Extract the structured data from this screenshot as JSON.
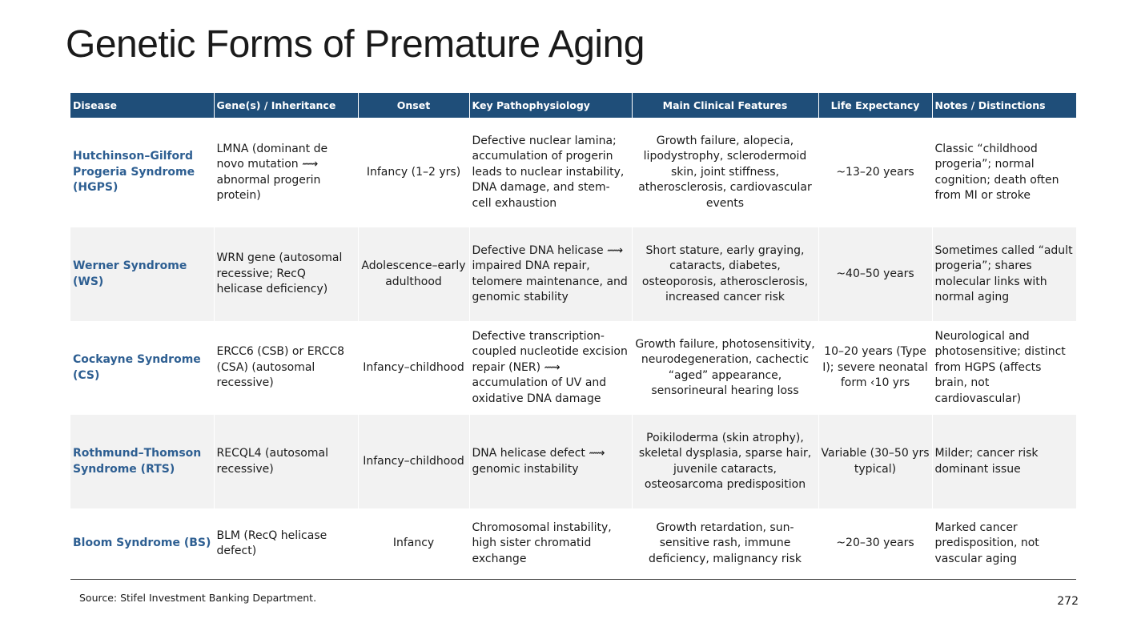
{
  "page": {
    "title": "Genetic Forms of Premature Aging",
    "source": "Source: Stifel Investment Banking Department.",
    "page_number": "272"
  },
  "table": {
    "headers": [
      "Disease",
      "Gene(s) / Inheritance",
      "Onset",
      "Key Pathophysiology",
      "Main Clinical Features",
      "Life Expectancy",
      "Notes / Distinctions"
    ],
    "rows": [
      {
        "disease": "Hutchinson–Gilford Progeria Syndrome (HGPS)",
        "gene": "LMNA (dominant de novo mutation ⟿ abnormal progerin protein)",
        "onset": "Infancy (1–2 yrs)",
        "pathophysiology": "Defective nuclear lamina; accumulation of progerin leads to nuclear instability, DNA damage, and stem-cell exhaustion",
        "features": "Growth failure, alopecia, lipodystrophy, sclerodermoid skin, joint stiffness, atherosclerosis, cardiovascular events",
        "life_expectancy": "~13–20 years",
        "notes": "Classic “childhood progeria”; normal cognition; death often from MI or stroke"
      },
      {
        "disease": "Werner Syndrome (WS)",
        "gene": "WRN gene (autosomal recessive; RecQ helicase deficiency)",
        "onset": "Adolescence–early adulthood",
        "pathophysiology": "Defective DNA helicase ⟿ impaired DNA repair, telomere maintenance, and genomic stability",
        "features": "Short stature, early graying, cataracts, diabetes, osteoporosis, atherosclerosis, increased cancer risk",
        "life_expectancy": "~40–50 years",
        "notes": "Sometimes called “adult progeria”; shares molecular links with normal aging"
      },
      {
        "disease": "Cockayne Syndrome (CS)",
        "gene": "ERCC6 (CSB) or ERCC8 (CSA) (autosomal recessive)",
        "onset": "Infancy–childhood",
        "pathophysiology": "Defective transcription-coupled nucleotide excision repair (NER) ⟿ accumulation of UV and oxidative DNA damage",
        "features": "Growth failure, photosensitivity, neurodegeneration, cachectic “aged” appearance, sensorineural hearing loss",
        "life_expectancy": "10–20 years (Type I); severe neonatal form ‹10 yrs",
        "notes": "Neurological and photosensitive; distinct from HGPS (affects brain, not cardiovascular)"
      },
      {
        "disease": "Rothmund–Thomson Syndrome (RTS)",
        "gene": "RECQL4 (autosomal recessive)",
        "onset": "Infancy–childhood",
        "pathophysiology": "DNA helicase defect ⟿ genomic instability",
        "features": "Poikiloderma (skin atrophy), skeletal dysplasia, sparse hair, juvenile cataracts, osteosarcoma predisposition",
        "life_expectancy": "Variable (30–50 yrs typical)",
        "notes": "Milder; cancer risk dominant issue"
      },
      {
        "disease": "Bloom Syndrome (BS)",
        "gene": "BLM (RecQ helicase defect)",
        "onset": "Infancy",
        "pathophysiology": "Chromosomal instability, high sister chromatid exchange",
        "features": "Growth retardation, sun-sensitive rash, immune deficiency, malignancy risk",
        "life_expectancy": "~20–30 years",
        "notes": "Marked cancer predisposition, not vascular aging"
      }
    ]
  }
}
